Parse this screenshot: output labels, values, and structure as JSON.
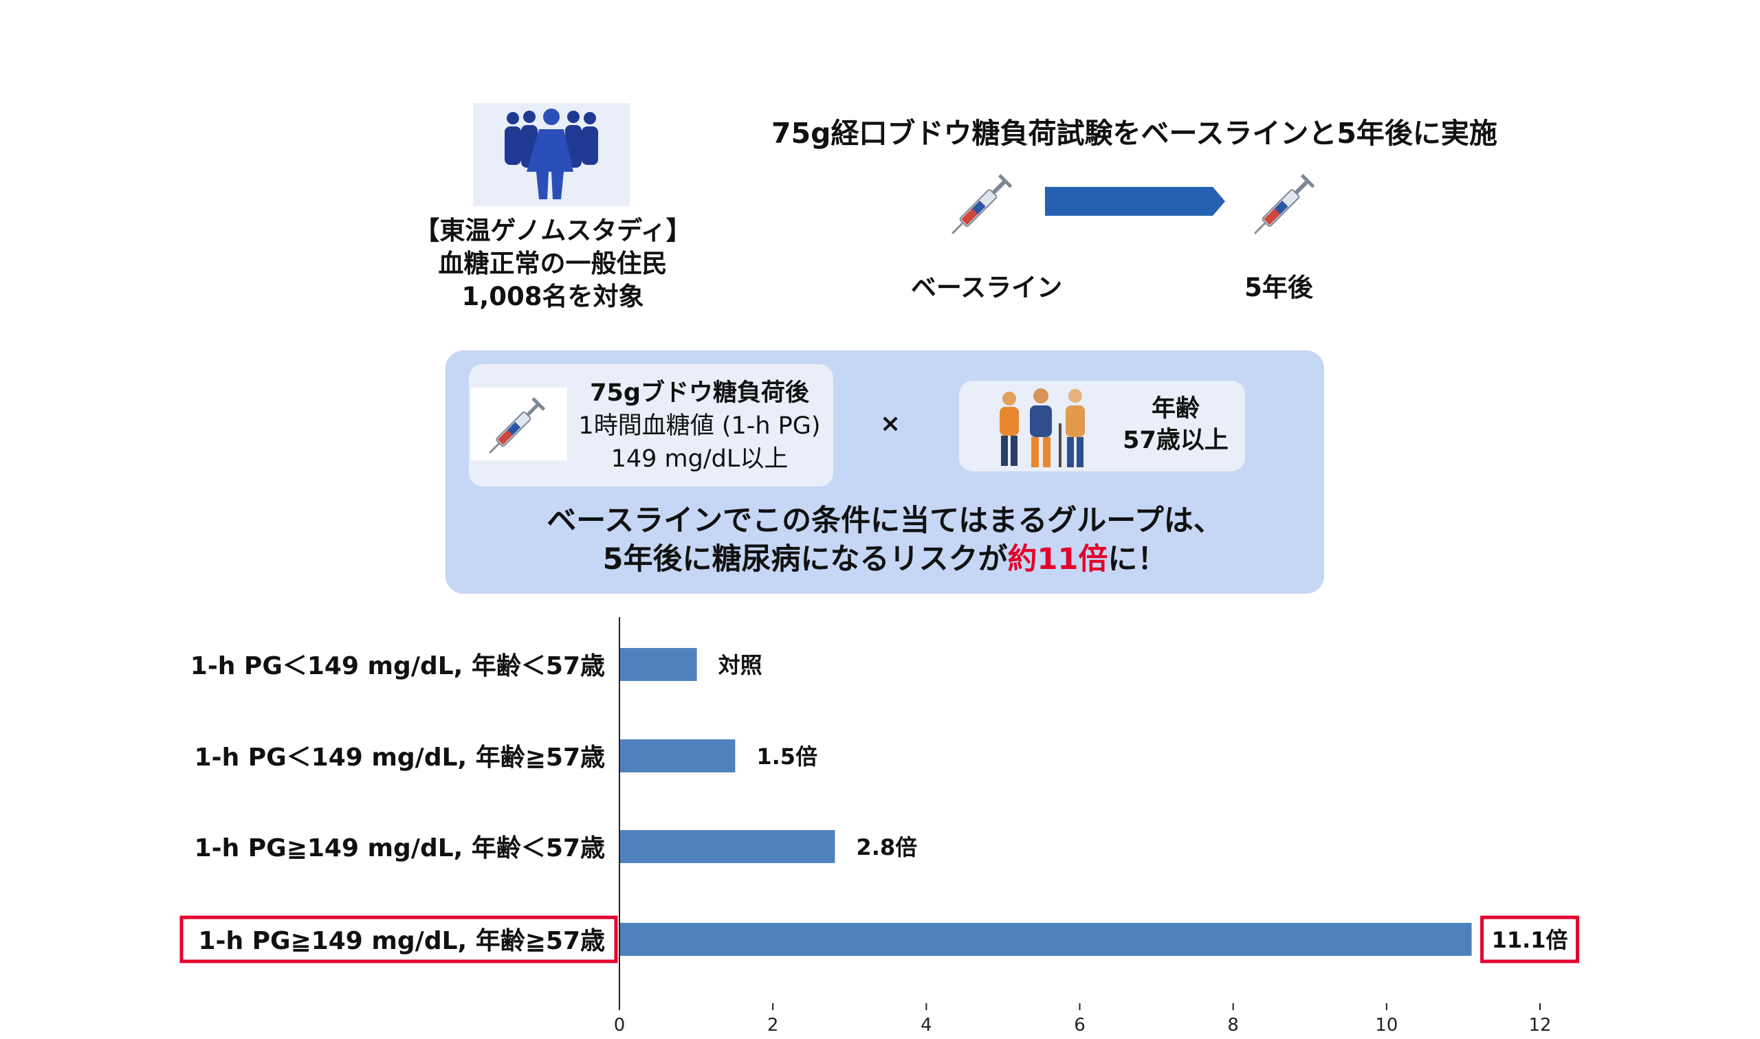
{
  "study": {
    "cohort_lines": [
      "【東温ゲノムスタディ】",
      "血糖正常の一般住民",
      "1,008名を対象"
    ],
    "ogtt_title": "75g経口ブドウ糖負荷試験をベースラインと5年後に実施",
    "timeline": {
      "baseline_label": "ベースライン",
      "followup_label": "5年後"
    }
  },
  "condition": {
    "pg_lines": [
      "75gブドウ糖負荷後",
      "1時間血糖値 (1-h PG)",
      "149 mg/dL以上"
    ],
    "times_sign": "×",
    "age_lines": [
      "年齢",
      "57歳以上"
    ],
    "conclusion_line1": "ベースラインでこの条件に当てはまるグループは、",
    "conclusion_line2_pre": "5年後に糖尿病になるリスクが",
    "conclusion_line2_emph": "約11倍",
    "conclusion_line2_post": "に！"
  },
  "colors": {
    "bar": "#4f81bd",
    "panel": "#c5d7f5",
    "card": "#e9eef8",
    "arrow": "#2461b0",
    "highlight": "#e4002b"
  },
  "icons": [
    "people-group-icon",
    "syringe-icon",
    "arrow-right-icon",
    "elderly-people-icon"
  ],
  "chart_data": {
    "type": "bar",
    "orientation": "horizontal",
    "categories": [
      "1-h PG＜149 mg/dL, 年齢＜57歳",
      "1-h PG＜149 mg/dL, 年齢≧57歳",
      "1-h PG≧149 mg/dL, 年齢＜57歳",
      "1-h PG≧149 mg/dL, 年齢≧57歳"
    ],
    "values": [
      1,
      1.5,
      2.8,
      11.1
    ],
    "data_labels": [
      "対照",
      "1.5倍",
      "2.8倍",
      "11.1倍"
    ],
    "xlim": [
      0,
      12
    ],
    "xticks": [
      0,
      2,
      4,
      6,
      8,
      10,
      12
    ],
    "highlighted_index": 3,
    "grid": false
  }
}
